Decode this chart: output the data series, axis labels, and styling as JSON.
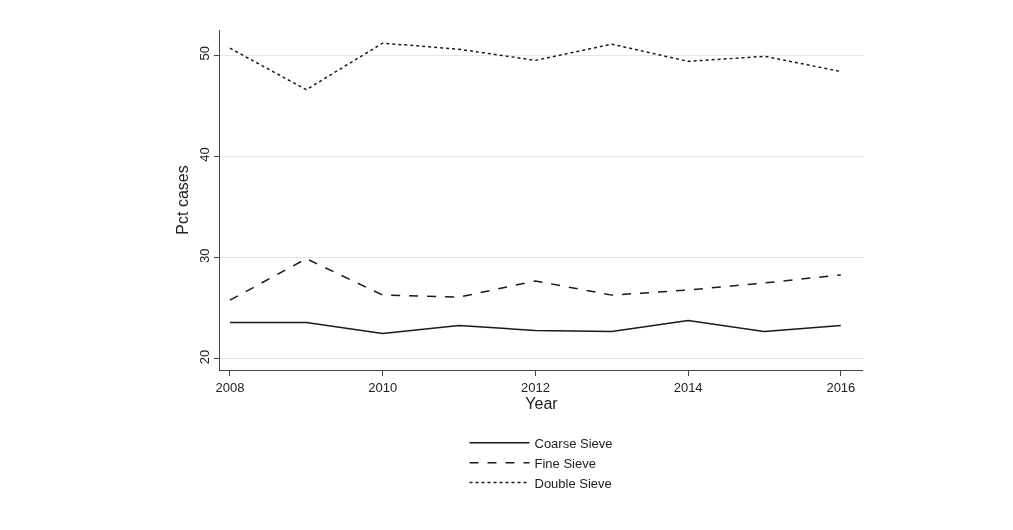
{
  "chart_data": {
    "type": "line",
    "xlabel": "Year",
    "ylabel": "Pct cases",
    "x": [
      2008,
      2009,
      2010,
      2011,
      2012,
      2013,
      2014,
      2015,
      2016
    ],
    "series": [
      {
        "name": "Coarse Sieve",
        "color": "#1a1a1a",
        "line_style": "solid",
        "values": [
          23.6,
          23.6,
          22.5,
          23.3,
          22.8,
          22.7,
          23.8,
          22.7,
          23.3
        ]
      },
      {
        "name": "Fine Sieve",
        "color": "#1a1a1a",
        "line_style": "dashed",
        "values": [
          25.8,
          29.9,
          26.3,
          26.1,
          27.7,
          26.3,
          26.8,
          27.5,
          28.3
        ]
      },
      {
        "name": "Double Sieve",
        "color": "#1a1a1a",
        "line_style": "dotted",
        "values": [
          50.7,
          46.6,
          51.2,
          50.6,
          49.5,
          51.1,
          49.4,
          49.9,
          48.4
        ]
      }
    ],
    "xlim": [
      2007.87,
      2016.29
    ],
    "xticks": [
      2008,
      2010,
      2012,
      2014,
      2016
    ],
    "ylim": [
      18.9,
      52.5
    ],
    "yticks": [
      20,
      30,
      40,
      50
    ],
    "grid": "y",
    "legend": "bottom",
    "marker": "none"
  }
}
